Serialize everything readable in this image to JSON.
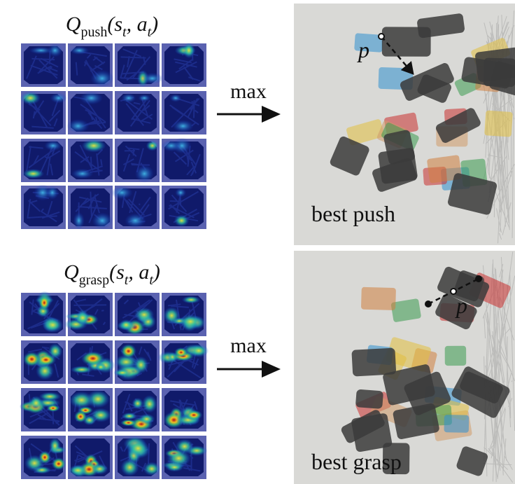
{
  "rows": [
    {
      "label": {
        "parts": [
          "Q",
          "push",
          "(s",
          "t",
          ", a",
          "t",
          ")"
        ]
      },
      "operator": "max",
      "caption": "best push",
      "point_label": "p"
    },
    {
      "label": {
        "parts": [
          "Q",
          "grasp",
          "(s",
          "t",
          ", a",
          "t",
          ")"
        ]
      },
      "operator": "max",
      "caption": "best grasp",
      "point_label": "p"
    }
  ]
}
